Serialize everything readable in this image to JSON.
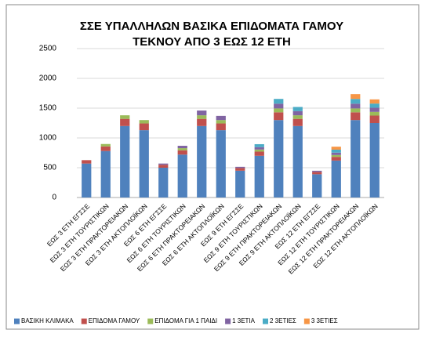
{
  "chart_data": {
    "type": "bar",
    "stacked": true,
    "title": [
      "ΣΣΕ ΥΠΑΛΛΗΛΩΝ ΒΑΣΙΚΑ ΕΠΙΔΟΜΑΤΑ ΓΑΜΟΥ",
      "ΤΕΚΝΟΥ ΑΠΟ 3 ΕΩΣ 12 ΕΤΗ"
    ],
    "categories": [
      "ΕΩΣ 3 ΕΤΗ ΕΓΣΣΕ",
      "ΕΩΣ 3 ΕΤΗ ΤΟΥΡΙΣΤΙΚΩΝ",
      "ΕΩΣ 3 ΕΤΗ ΠΡΑΚΤΟΡΕΙΑΚΩΝ",
      "ΕΩΣ 3 ΕΤΗ ΑΚΤΟΠΛΟΪΚΩΝ",
      "ΕΩΣ 6 ΕΤΗ ΕΓΣΣΕ",
      "ΕΩΣ 6 ΕΤΗ ΤΟΥΡΙΣΤΙΚΩΝ",
      "ΕΩΣ 6 ΕΤΗ ΠΡΑΚΤΟΡΕΙΑΚΩΝ",
      "ΕΩΣ 6 ΕΤΗ ΑΚΤΟΠΛΟΪΚΩΝ",
      "ΕΩΣ 9 ΕΤΗ ΕΓΣΣΕ",
      "ΕΩΣ 9 ΕΤΗ ΤΟΥΡΙΣΤΙΚΩΝ",
      "ΕΩΣ 9 ΕΤΗ ΠΡΑΚΤΟΡΕΙΑΚΩΝ",
      "ΕΩΣ 9 ΕΤΗ ΑΚΤΟΠΛΟΪΚΩΝ",
      "ΕΩΣ 12 ΕΤΗ ΕΓΣΣΕ",
      "ΕΩΣ 12 ΕΤΗ ΤΟΥΡΙΣΤΙΚΩΝ",
      "ΕΩΣ 12 ΕΤΗ ΠΡΑΚΤΟΡΕΙΑΚΩΝ",
      "ΕΩΣ 12 ΕΤΗ ΑΚΤΟΠΛΟΪΚΩΝ"
    ],
    "series": [
      {
        "name": "ΒΑΣΙΚΗ ΚΛΙΜΑΚΑ",
        "color": "#4f81bd",
        "values": [
          570,
          780,
          1200,
          1130,
          500,
          720,
          1200,
          1130,
          450,
          700,
          1300,
          1200,
          390,
          620,
          1300,
          1250
        ]
      },
      {
        "name": "ΕΠΙΔΟΜΑ ΓΑΜΟΥ",
        "color": "#c0504d",
        "values": [
          57,
          78,
          120,
          113,
          50,
          72,
          120,
          113,
          45,
          70,
          130,
          120,
          39,
          62,
          130,
          125
        ]
      },
      {
        "name": "ΕΠΙΔΟΜΑ ΓΙΑ 1 ΠΑΙΔΙ",
        "color": "#9bbb59",
        "values": [
          null,
          40,
          60,
          57,
          null,
          36,
          60,
          57,
          null,
          35,
          65,
          60,
          null,
          31,
          65,
          62
        ]
      },
      {
        "name": "1 3ΕΤΙΑ",
        "color": "#8064a2",
        "values": [
          null,
          null,
          null,
          null,
          20,
          40,
          80,
          70,
          20,
          40,
          80,
          70,
          20,
          40,
          80,
          70
        ]
      },
      {
        "name": "2 3ΕΤΙΕΣ",
        "color": "#4bacc6",
        "values": [
          null,
          null,
          null,
          null,
          null,
          null,
          null,
          null,
          null,
          50,
          80,
          70,
          null,
          50,
          80,
          70
        ]
      },
      {
        "name": "3 3ΕΤΙΕΣ",
        "color": "#f79646",
        "values": [
          null,
          null,
          null,
          null,
          null,
          null,
          null,
          null,
          null,
          null,
          null,
          null,
          null,
          50,
          80,
          70
        ]
      }
    ],
    "ylim": [
      0,
      2500
    ],
    "yticks": [
      0,
      500,
      1000,
      1500,
      2000,
      2500
    ],
    "grid": true,
    "legend": "bottom"
  }
}
